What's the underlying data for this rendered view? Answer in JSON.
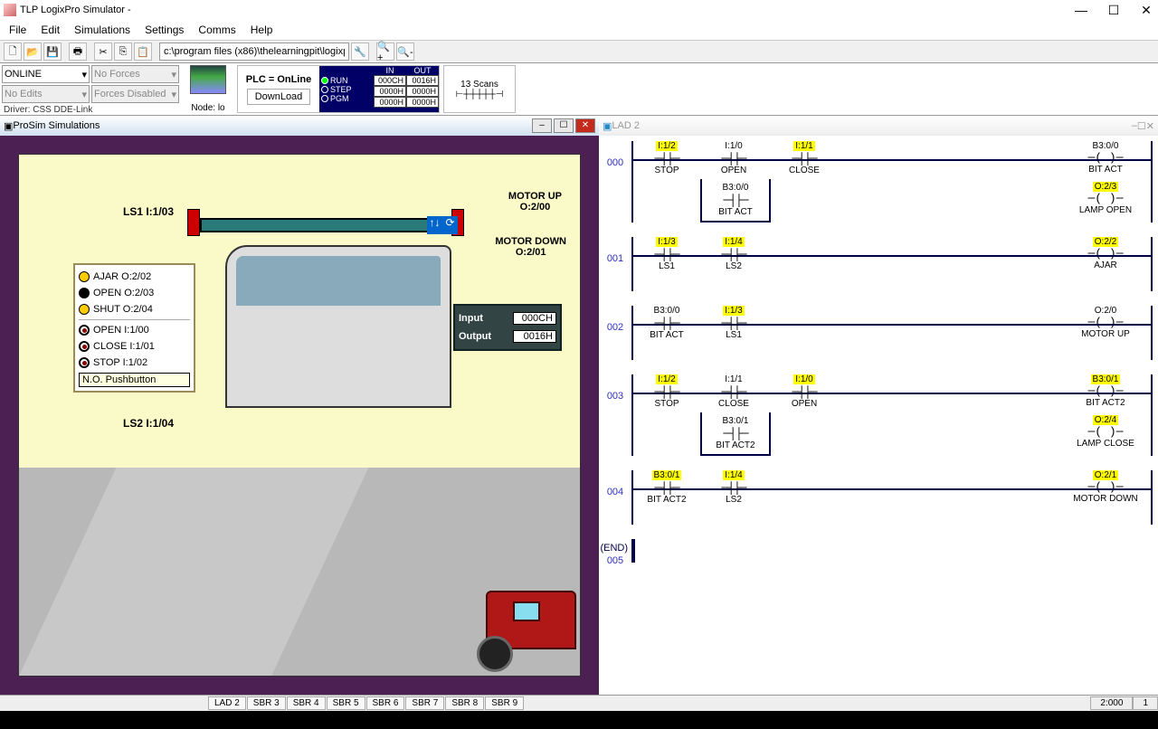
{
  "app": {
    "title": "TLP LogixPro Simulator  -"
  },
  "menu": {
    "file": "File",
    "edit": "Edit",
    "simulations": "Simulations",
    "settings": "Settings",
    "comms": "Comms",
    "help": "Help"
  },
  "path": "c:\\program files (x86)\\thelearningpit\\logixpr",
  "driver": {
    "online": "ONLINE",
    "noforces": "No Forces",
    "noedits": "No Edits",
    "forcesdis": "Forces Disabled",
    "caption": "Driver: CSS DDE-Link",
    "node": "Node: lo"
  },
  "plc": {
    "status": "PLC = OnLine",
    "download": "DownLoad",
    "run": "RUN",
    "step": "STEP",
    "pgm": "PGM",
    "in": "IN",
    "out": "OUT",
    "v1": "000CH",
    "v2": "0016H",
    "v3": "0000H",
    "v4": "0000H",
    "v5": "0000H",
    "v6": "0000H"
  },
  "scans": {
    "label": "Scans",
    "count": "13"
  },
  "simwin": {
    "title": "ProSim Simulations"
  },
  "sim": {
    "ls1": "LS1   I:1/03",
    "ls2": "LS2   I:1/04",
    "motorup": "MOTOR UP",
    "motorup_addr": "O:2/00",
    "motordown": "MOTOR DOWN",
    "motordown_addr": "O:2/01",
    "ajar": "AJAR   O:2/02",
    "open": "OPEN   O:2/03",
    "shut": "SHUT   O:2/04",
    "open_in": "OPEN   I:1/00",
    "close_in": "CLOSE I:1/01",
    "stop_in": "STOP   I:1/02",
    "tooltip": "N.O. Pushbutton",
    "input_lbl": "Input",
    "input_val": "000CH",
    "output_lbl": "Output",
    "output_val": "0016H"
  },
  "ladwin": {
    "title": "LAD 2"
  },
  "ladder": {
    "rungs": [
      {
        "num": "000",
        "c": [
          {
            "a": "I:1/2",
            "d": "STOP",
            "h": true
          },
          {
            "a": "I:1/0",
            "d": "OPEN",
            "h": false,
            "br": [
              {
                "a": "B3:0/0",
                "d": "BIT ACT",
                "h": false
              }
            ]
          },
          {
            "a": "I:1/1",
            "d": "CLOSE",
            "h": true
          }
        ],
        "o": [
          {
            "a": "B3:0/0",
            "d": "BIT ACT",
            "h": false
          },
          {
            "a": "O:2/3",
            "d": "LAMP OPEN",
            "h": true
          }
        ]
      },
      {
        "num": "001",
        "c": [
          {
            "a": "I:1/3",
            "d": "LS1",
            "h": true
          },
          {
            "a": "I:1/4",
            "d": "LS2",
            "h": true
          }
        ],
        "o": [
          {
            "a": "O:2/2",
            "d": "AJAR",
            "h": true
          }
        ]
      },
      {
        "num": "002",
        "c": [
          {
            "a": "B3:0/0",
            "d": "BIT ACT",
            "h": false
          },
          {
            "a": "I:1/3",
            "d": "LS1",
            "h": true
          }
        ],
        "o": [
          {
            "a": "O:2/0",
            "d": "MOTOR UP",
            "h": false
          }
        ]
      },
      {
        "num": "003",
        "c": [
          {
            "a": "I:1/2",
            "d": "STOP",
            "h": true
          },
          {
            "a": "I:1/1",
            "d": "CLOSE",
            "h": false,
            "br": [
              {
                "a": "B3:0/1",
                "d": "BIT ACT2",
                "h": false
              }
            ]
          },
          {
            "a": "I:1/0",
            "d": "OPEN",
            "h": true
          }
        ],
        "o": [
          {
            "a": "B3:0/1",
            "d": "BIT ACT2",
            "h": true
          },
          {
            "a": "O:2/4",
            "d": "LAMP CLOSE",
            "h": true
          }
        ]
      },
      {
        "num": "004",
        "c": [
          {
            "a": "B3:0/1",
            "d": "BIT ACT2",
            "h": true
          },
          {
            "a": "I:1/4",
            "d": "LS2",
            "h": true
          }
        ],
        "o": [
          {
            "a": "O:2/1",
            "d": "MOTOR DOWN",
            "h": true
          }
        ]
      }
    ],
    "end": "(END)"
  },
  "status": {
    "tabs": [
      "LAD 2",
      "SBR 3",
      "SBR 4",
      "SBR 5",
      "SBR 6",
      "SBR 7",
      "SBR 8",
      "SBR 9"
    ],
    "val1": "2:000",
    "val2": "1"
  }
}
